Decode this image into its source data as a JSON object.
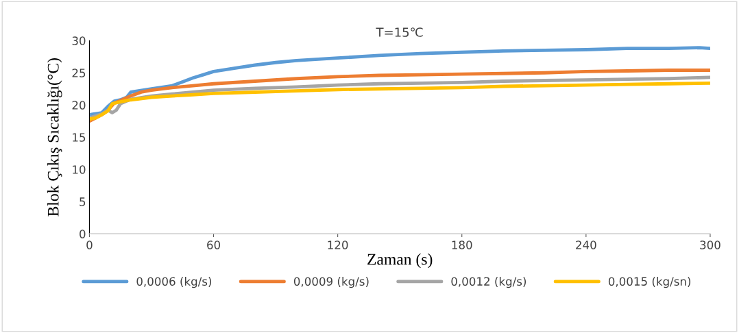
{
  "chart_data": {
    "type": "line",
    "title": "T=15℃",
    "xlabel": "Zaman (s)",
    "ylabel": "Blok Çıkış Sıcaklığı(°C)",
    "xlim": [
      0,
      300
    ],
    "xticks": [
      0,
      60,
      120,
      180,
      240,
      300
    ],
    "ylim": [
      0,
      30
    ],
    "yticks": [
      0,
      5,
      10,
      15,
      20,
      25,
      30
    ],
    "grid": false,
    "legend": "bottom",
    "marker": "none",
    "line_style": "solid",
    "series": [
      {
        "name": "0,0006 (kg/s)",
        "color": "#5b9bd5",
        "x": [
          0,
          6,
          9,
          12,
          15,
          18,
          20,
          30,
          40,
          45,
          50,
          55,
          60,
          70,
          80,
          90,
          100,
          120,
          140,
          160,
          180,
          200,
          220,
          240,
          260,
          280,
          295,
          300
        ],
        "values": [
          18.5,
          18.8,
          19.8,
          20.6,
          20.8,
          21.2,
          22.0,
          22.5,
          23.0,
          23.6,
          24.2,
          24.7,
          25.2,
          25.7,
          26.2,
          26.6,
          26.9,
          27.3,
          27.7,
          28.0,
          28.2,
          28.4,
          28.5,
          28.6,
          28.8,
          28.8,
          28.9,
          28.8
        ]
      },
      {
        "name": "0,0009 (kg/s)",
        "color": "#ed7d31",
        "x": [
          0,
          3,
          6,
          9,
          12,
          15,
          20,
          25,
          30,
          40,
          50,
          60,
          80,
          100,
          120,
          140,
          160,
          180,
          200,
          220,
          240,
          260,
          280,
          300
        ],
        "values": [
          17.5,
          18.0,
          18.5,
          19.2,
          20.3,
          20.7,
          21.4,
          22.0,
          22.3,
          22.7,
          23.0,
          23.3,
          23.7,
          24.1,
          24.4,
          24.6,
          24.7,
          24.8,
          24.9,
          25.0,
          25.2,
          25.3,
          25.4,
          25.4
        ]
      },
      {
        "name": "0,0012 (kg/s)",
        "color": "#a5a5a5",
        "x": [
          0,
          6,
          9,
          11,
          13,
          15,
          20,
          30,
          40,
          50,
          60,
          80,
          100,
          120,
          140,
          160,
          180,
          200,
          220,
          240,
          260,
          280,
          300
        ],
        "values": [
          18.0,
          18.6,
          19.2,
          18.8,
          19.2,
          20.2,
          20.9,
          21.4,
          21.7,
          22.0,
          22.3,
          22.6,
          22.8,
          23.1,
          23.3,
          23.4,
          23.5,
          23.7,
          23.8,
          23.9,
          24.0,
          24.1,
          24.3
        ]
      },
      {
        "name": "0,0015 (kg/sn)",
        "color": "#ffc000",
        "x": [
          0,
          3,
          6,
          9,
          11,
          15,
          20,
          30,
          40,
          50,
          60,
          80,
          100,
          120,
          140,
          160,
          180,
          200,
          220,
          240,
          260,
          280,
          300
        ],
        "values": [
          17.8,
          18.0,
          18.5,
          19.1,
          20.2,
          20.5,
          20.8,
          21.2,
          21.4,
          21.6,
          21.8,
          22.0,
          22.2,
          22.4,
          22.5,
          22.6,
          22.7,
          22.9,
          23.0,
          23.1,
          23.2,
          23.3,
          23.4
        ]
      }
    ]
  }
}
